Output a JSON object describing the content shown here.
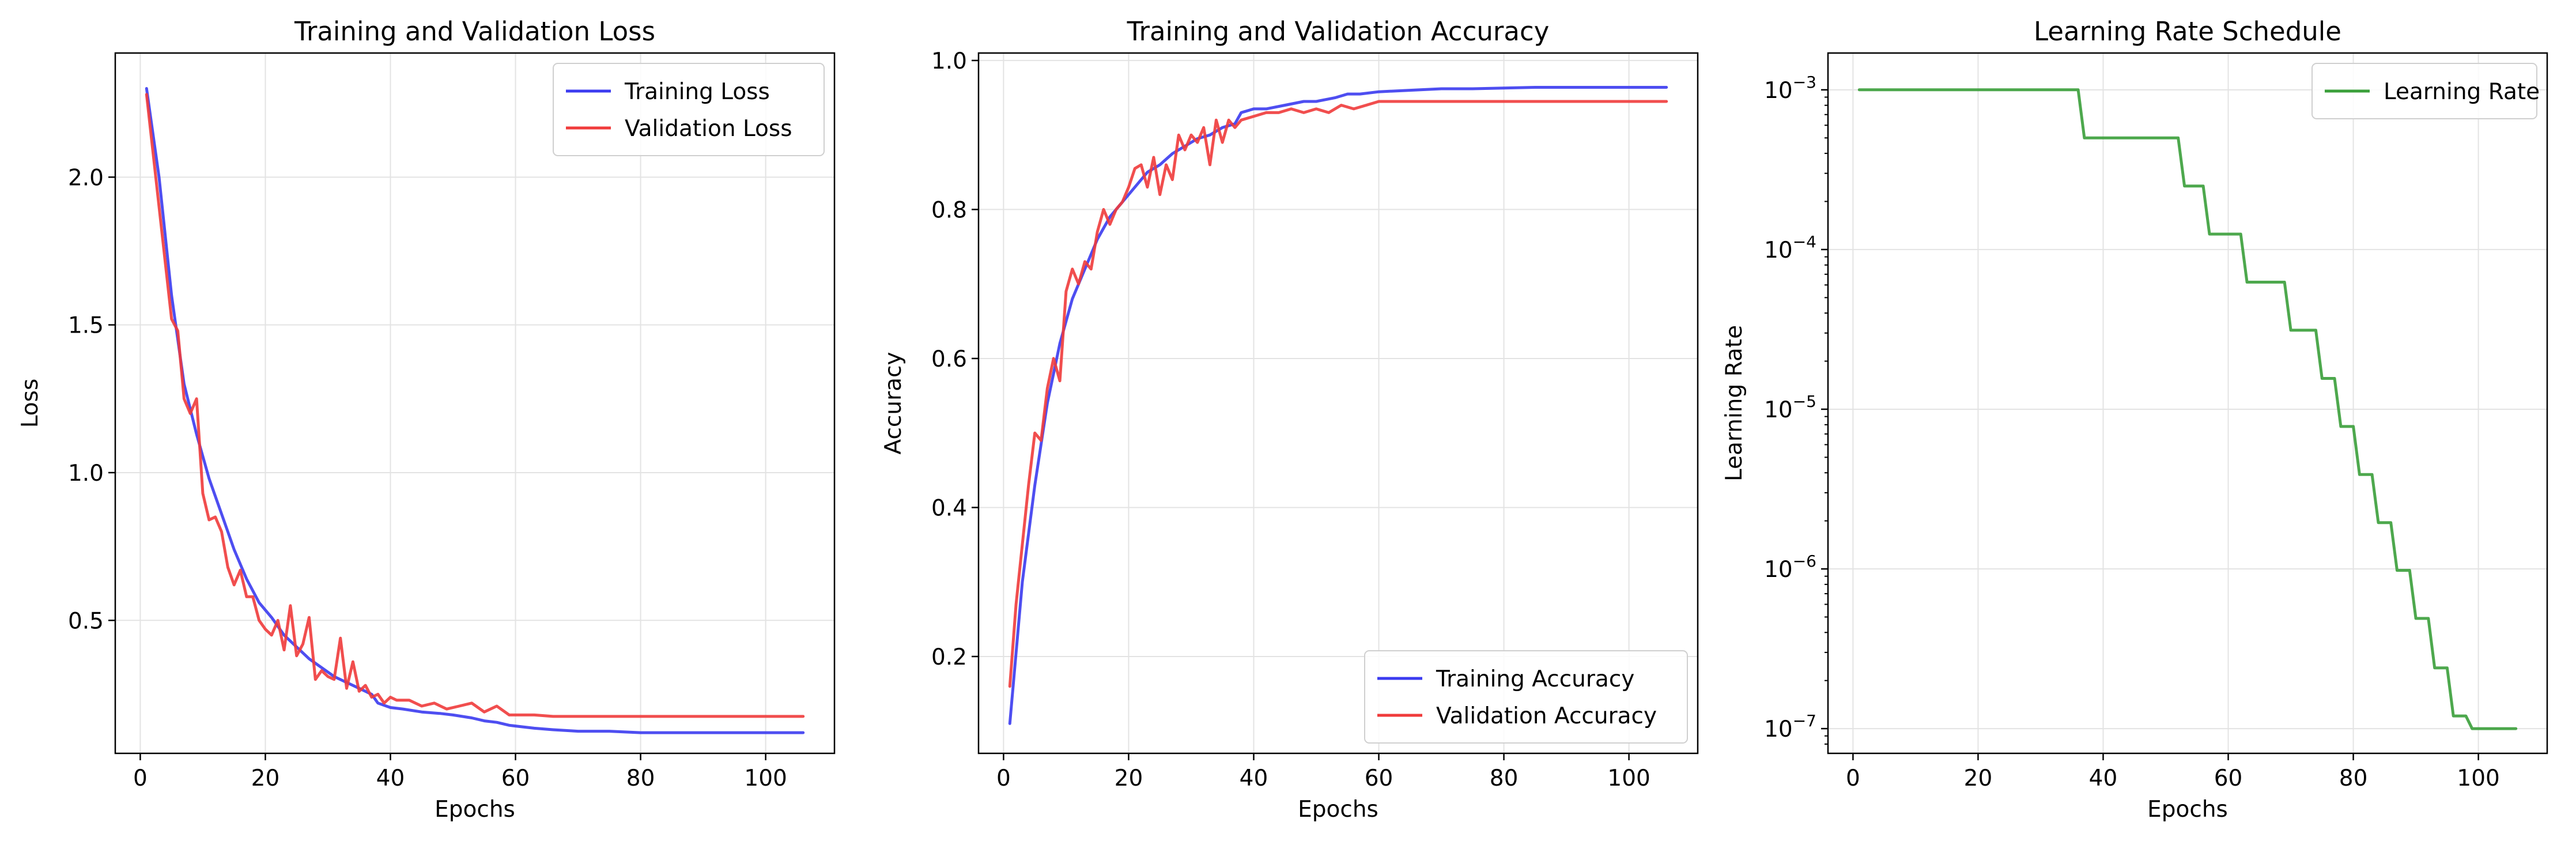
{
  "chart_data": [
    {
      "type": "line",
      "title": "Training and Validation Loss",
      "xlabel": "Epochs",
      "ylabel": "Loss",
      "xlim": [
        -4,
        111
      ],
      "ylim": [
        0.05,
        2.42
      ],
      "xticks": [
        0,
        20,
        40,
        60,
        80,
        100
      ],
      "yticks": [
        0.5,
        1.0,
        1.5,
        2.0
      ],
      "ytick_labels": [
        "0.5",
        "1.0",
        "1.5",
        "2.0"
      ],
      "grid": true,
      "legend": "top-right",
      "series": [
        {
          "name": "Training Loss",
          "color": "#3b3bf0",
          "points": [
            [
              1,
              2.3
            ],
            [
              3,
              2.0
            ],
            [
              5,
              1.6
            ],
            [
              7,
              1.3
            ],
            [
              9,
              1.13
            ],
            [
              11,
              0.98
            ],
            [
              13,
              0.86
            ],
            [
              15,
              0.74
            ],
            [
              17,
              0.64
            ],
            [
              19,
              0.56
            ],
            [
              21,
              0.51
            ],
            [
              23,
              0.45
            ],
            [
              25,
              0.41
            ],
            [
              27,
              0.37
            ],
            [
              29,
              0.34
            ],
            [
              31,
              0.31
            ],
            [
              33,
              0.29
            ],
            [
              35,
              0.27
            ],
            [
              37,
              0.25
            ],
            [
              38,
              0.22
            ],
            [
              40,
              0.205
            ],
            [
              42,
              0.2
            ],
            [
              45,
              0.19
            ],
            [
              48,
              0.185
            ],
            [
              50,
              0.18
            ],
            [
              53,
              0.17
            ],
            [
              55,
              0.16
            ],
            [
              57,
              0.155
            ],
            [
              59,
              0.145
            ],
            [
              61,
              0.14
            ],
            [
              63,
              0.135
            ],
            [
              66,
              0.13
            ],
            [
              70,
              0.125
            ],
            [
              75,
              0.125
            ],
            [
              80,
              0.12
            ],
            [
              85,
              0.12
            ],
            [
              90,
              0.12
            ],
            [
              95,
              0.12
            ],
            [
              100,
              0.12
            ],
            [
              106,
              0.12
            ]
          ]
        },
        {
          "name": "Validation Loss",
          "color": "#f03b3b",
          "points": [
            [
              1,
              2.28
            ],
            [
              3,
              1.9
            ],
            [
              5,
              1.52
            ],
            [
              6,
              1.48
            ],
            [
              7,
              1.25
            ],
            [
              8,
              1.2
            ],
            [
              9,
              1.25
            ],
            [
              10,
              0.93
            ],
            [
              11,
              0.84
            ],
            [
              12,
              0.85
            ],
            [
              13,
              0.8
            ],
            [
              14,
              0.68
            ],
            [
              15,
              0.62
            ],
            [
              16,
              0.67
            ],
            [
              17,
              0.58
            ],
            [
              18,
              0.58
            ],
            [
              19,
              0.5
            ],
            [
              20,
              0.47
            ],
            [
              21,
              0.45
            ],
            [
              22,
              0.5
            ],
            [
              23,
              0.4
            ],
            [
              24,
              0.55
            ],
            [
              25,
              0.38
            ],
            [
              26,
              0.42
            ],
            [
              27,
              0.51
            ],
            [
              28,
              0.3
            ],
            [
              29,
              0.33
            ],
            [
              30,
              0.31
            ],
            [
              31,
              0.3
            ],
            [
              32,
              0.44
            ],
            [
              33,
              0.27
            ],
            [
              34,
              0.36
            ],
            [
              35,
              0.26
            ],
            [
              36,
              0.28
            ],
            [
              37,
              0.24
            ],
            [
              38,
              0.25
            ],
            [
              39,
              0.22
            ],
            [
              40,
              0.24
            ],
            [
              41,
              0.23
            ],
            [
              43,
              0.23
            ],
            [
              45,
              0.21
            ],
            [
              47,
              0.22
            ],
            [
              49,
              0.2
            ],
            [
              51,
              0.21
            ],
            [
              53,
              0.22
            ],
            [
              55,
              0.19
            ],
            [
              57,
              0.21
            ],
            [
              59,
              0.18
            ],
            [
              61,
              0.18
            ],
            [
              63,
              0.18
            ],
            [
              66,
              0.175
            ],
            [
              70,
              0.175
            ],
            [
              80,
              0.175
            ],
            [
              90,
              0.175
            ],
            [
              106,
              0.175
            ]
          ]
        }
      ]
    },
    {
      "type": "line",
      "title": "Training and Validation Accuracy",
      "xlabel": "Epochs",
      "ylabel": "Accuracy",
      "xlim": [
        -4,
        111
      ],
      "ylim": [
        0.07,
        1.01
      ],
      "xticks": [
        0,
        20,
        40,
        60,
        80,
        100
      ],
      "yticks": [
        0.2,
        0.4,
        0.6,
        0.8,
        1.0
      ],
      "ytick_labels": [
        "0.2",
        "0.4",
        "0.6",
        "0.8",
        "1.0"
      ],
      "grid": true,
      "legend": "bottom-right",
      "series": [
        {
          "name": "Training Accuracy",
          "color": "#3b3bf0",
          "points": [
            [
              1,
              0.11
            ],
            [
              3,
              0.3
            ],
            [
              5,
              0.43
            ],
            [
              7,
              0.54
            ],
            [
              9,
              0.62
            ],
            [
              11,
              0.68
            ],
            [
              13,
              0.72
            ],
            [
              15,
              0.76
            ],
            [
              17,
              0.79
            ],
            [
              19,
              0.81
            ],
            [
              21,
              0.83
            ],
            [
              23,
              0.85
            ],
            [
              25,
              0.86
            ],
            [
              27,
              0.875
            ],
            [
              29,
              0.885
            ],
            [
              31,
              0.895
            ],
            [
              33,
              0.9
            ],
            [
              35,
              0.91
            ],
            [
              37,
              0.915
            ],
            [
              38,
              0.93
            ],
            [
              40,
              0.935
            ],
            [
              42,
              0.935
            ],
            [
              45,
              0.94
            ],
            [
              48,
              0.945
            ],
            [
              50,
              0.945
            ],
            [
              53,
              0.95
            ],
            [
              55,
              0.955
            ],
            [
              57,
              0.955
            ],
            [
              60,
              0.958
            ],
            [
              65,
              0.96
            ],
            [
              70,
              0.962
            ],
            [
              75,
              0.962
            ],
            [
              80,
              0.963
            ],
            [
              85,
              0.964
            ],
            [
              90,
              0.964
            ],
            [
              95,
              0.964
            ],
            [
              100,
              0.964
            ],
            [
              106,
              0.964
            ]
          ]
        },
        {
          "name": "Validation Accuracy",
          "color": "#f03b3b",
          "points": [
            [
              1,
              0.16
            ],
            [
              2,
              0.27
            ],
            [
              4,
              0.43
            ],
            [
              5,
              0.5
            ],
            [
              6,
              0.49
            ],
            [
              7,
              0.56
            ],
            [
              8,
              0.6
            ],
            [
              9,
              0.57
            ],
            [
              10,
              0.69
            ],
            [
              11,
              0.72
            ],
            [
              12,
              0.7
            ],
            [
              13,
              0.73
            ],
            [
              14,
              0.72
            ],
            [
              15,
              0.77
            ],
            [
              16,
              0.8
            ],
            [
              17,
              0.78
            ],
            [
              18,
              0.8
            ],
            [
              19,
              0.81
            ],
            [
              20,
              0.83
            ],
            [
              21,
              0.855
            ],
            [
              22,
              0.86
            ],
            [
              23,
              0.83
            ],
            [
              24,
              0.87
            ],
            [
              25,
              0.82
            ],
            [
              26,
              0.86
            ],
            [
              27,
              0.84
            ],
            [
              28,
              0.9
            ],
            [
              29,
              0.88
            ],
            [
              30,
              0.9
            ],
            [
              31,
              0.89
            ],
            [
              32,
              0.91
            ],
            [
              33,
              0.86
            ],
            [
              34,
              0.92
            ],
            [
              35,
              0.89
            ],
            [
              36,
              0.92
            ],
            [
              37,
              0.91
            ],
            [
              38,
              0.92
            ],
            [
              40,
              0.925
            ],
            [
              42,
              0.93
            ],
            [
              44,
              0.93
            ],
            [
              46,
              0.935
            ],
            [
              48,
              0.93
            ],
            [
              50,
              0.935
            ],
            [
              52,
              0.93
            ],
            [
              54,
              0.94
            ],
            [
              56,
              0.935
            ],
            [
              58,
              0.94
            ],
            [
              60,
              0.945
            ],
            [
              63,
              0.945
            ],
            [
              66,
              0.945
            ],
            [
              70,
              0.945
            ],
            [
              80,
              0.945
            ],
            [
              90,
              0.945
            ],
            [
              106,
              0.945
            ]
          ]
        }
      ]
    },
    {
      "type": "line",
      "title": "Learning Rate Schedule",
      "xlabel": "Epochs",
      "ylabel": "Learning Rate",
      "yscale": "log",
      "xlim": [
        -4,
        111
      ],
      "ylim": [
        7e-08,
        0.0017
      ],
      "xticks": [
        0,
        20,
        40,
        60,
        80,
        100
      ],
      "yticks": [
        1e-07,
        1e-06,
        1e-05,
        0.0001,
        0.001
      ],
      "ytick_bases": [
        "10",
        "10",
        "10",
        "10",
        "10"
      ],
      "ytick_exponents": [
        "−7",
        "−6",
        "−5",
        "−4",
        "−3"
      ],
      "grid": true,
      "legend": "top-right",
      "series": [
        {
          "name": "Learning Rate",
          "color": "#3a9f3a",
          "points": [
            [
              1,
              0.001
            ],
            [
              36,
              0.001
            ],
            [
              37,
              0.0005
            ],
            [
              52,
              0.0005
            ],
            [
              53,
              0.00025
            ],
            [
              56,
              0.00025
            ],
            [
              57,
              0.000125
            ],
            [
              62,
              0.000125
            ],
            [
              63,
              6.25e-05
            ],
            [
              69,
              6.25e-05
            ],
            [
              70,
              3.125e-05
            ],
            [
              74,
              3.125e-05
            ],
            [
              75,
              1.56e-05
            ],
            [
              77,
              1.56e-05
            ],
            [
              78,
              7.8e-06
            ],
            [
              80,
              7.8e-06
            ],
            [
              81,
              3.9e-06
            ],
            [
              83,
              3.9e-06
            ],
            [
              84,
              1.95e-06
            ],
            [
              86,
              1.95e-06
            ],
            [
              87,
              9.8e-07
            ],
            [
              89,
              9.8e-07
            ],
            [
              90,
              4.9e-07
            ],
            [
              92,
              4.9e-07
            ],
            [
              93,
              2.4e-07
            ],
            [
              95,
              2.4e-07
            ],
            [
              96,
              1.2e-07
            ],
            [
              98,
              1.2e-07
            ],
            [
              99,
              1e-07
            ],
            [
              106,
              1e-07
            ]
          ]
        }
      ]
    }
  ]
}
